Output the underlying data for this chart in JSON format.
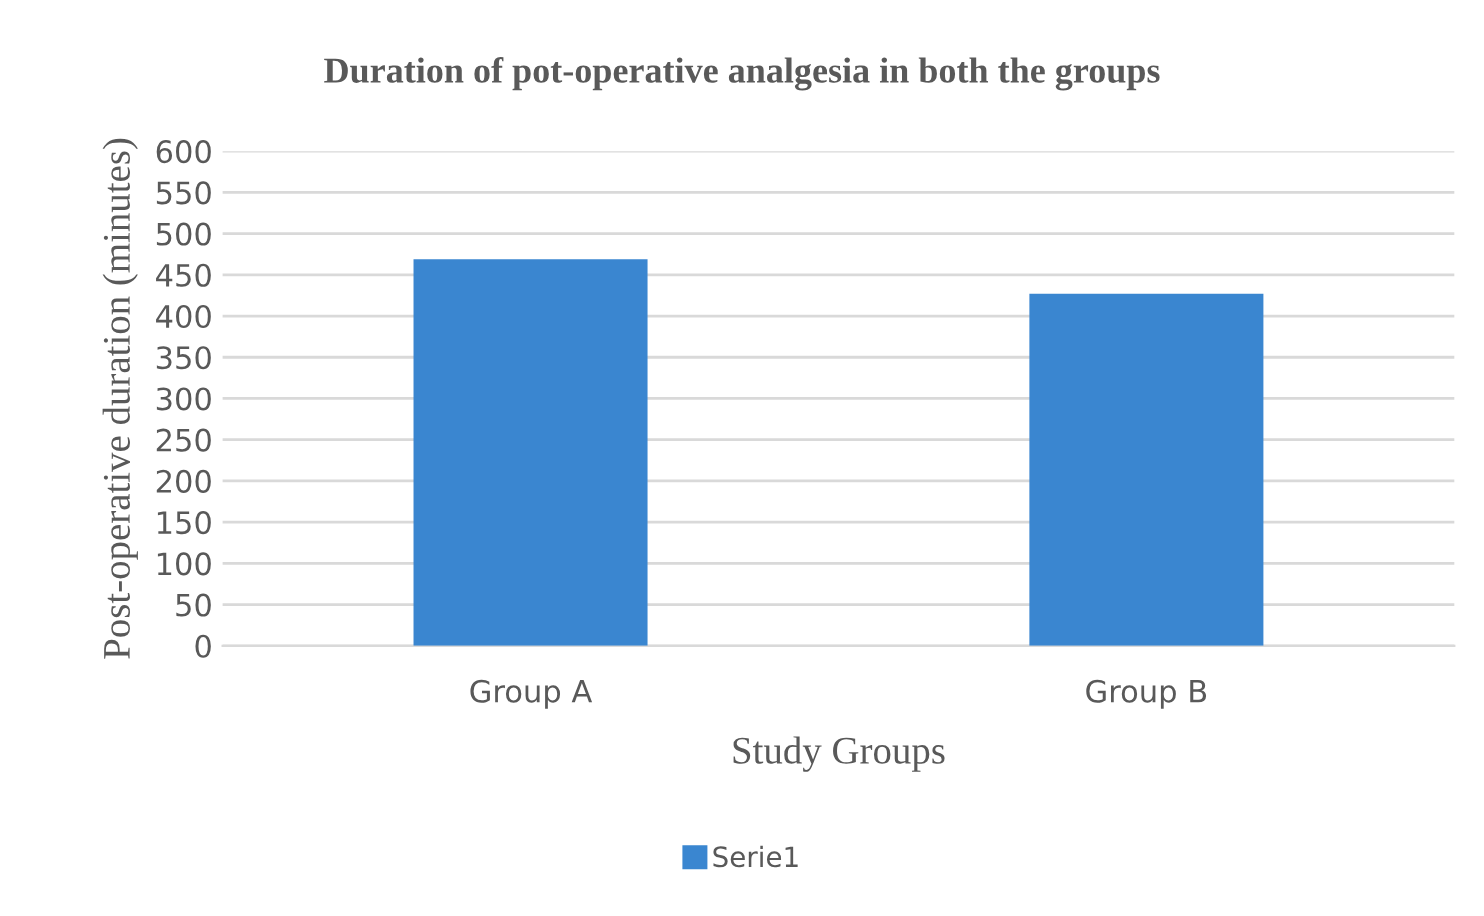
{
  "chart_data": {
    "type": "bar",
    "title": "Duration of pot-operative analgesia in both the groups",
    "xlabel": "Study Groups",
    "ylabel": "Post-operative duration (minutes)",
    "categories": [
      "Group A",
      "Group B"
    ],
    "series": [
      {
        "name": "Serie1",
        "color": "#3a86d0",
        "values": [
          469,
          427
        ]
      }
    ],
    "ylim": [
      0,
      600
    ],
    "yticks": [
      0,
      50,
      100,
      150,
      200,
      250,
      300,
      350,
      400,
      450,
      500,
      550,
      600
    ],
    "grid": "y",
    "legend": "bottom"
  }
}
